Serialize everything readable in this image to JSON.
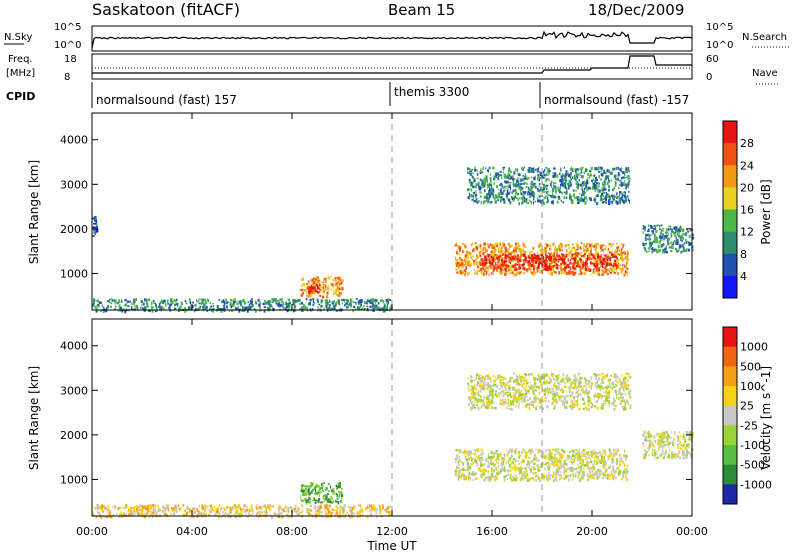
{
  "header": {
    "station": "Saskatoon (fitACF)",
    "beam": "Beam 15",
    "date": "18/Dec/2009"
  },
  "noise_panel": {
    "left_label": "N.Sky",
    "right_label": "N.Search",
    "left_ticks": [
      "10^5",
      "10^0"
    ],
    "right_ticks": [
      "10^5",
      "10^0"
    ]
  },
  "freq_panel": {
    "left_label_1": "Freq.",
    "left_label_2": "[MHz]",
    "right_label": "Nave",
    "left_ticks": [
      "18",
      "8"
    ],
    "right_ticks": [
      "60",
      "0"
    ]
  },
  "cpid": {
    "label": "CPID",
    "segments": [
      {
        "name": "normalsound (fast) 157",
        "start_hour": 0
      },
      {
        "name": "themis 3300",
        "start_hour": 12
      },
      {
        "name": "normalsound (fast) -157",
        "start_hour": 18
      }
    ]
  },
  "chart_data": [
    {
      "type": "heatmap",
      "name": "power",
      "ylabel": "Slant Range [km]",
      "yticks": [
        "1000",
        "2000",
        "3000",
        "4000"
      ],
      "ylim": [
        180,
        4600
      ],
      "xlim": [
        0,
        24
      ],
      "colorbar_label": "Power [dB]",
      "colorbar_ticks": [
        "4",
        "8",
        "12",
        "16",
        "20",
        "24",
        "28"
      ],
      "colorbar_colors": [
        "#1414ff",
        "#2050b0",
        "#2d8c6e",
        "#4cb848",
        "#e8d21e",
        "#f59a14",
        "#f05014",
        "#e81414"
      ],
      "regions": [
        {
          "x0": 0.0,
          "x1": 12.0,
          "y0": 180,
          "y1": 450,
          "level": 2
        },
        {
          "x0": 8.3,
          "x1": 10.0,
          "y0": 500,
          "y1": 950,
          "level": 5
        },
        {
          "x0": 8.6,
          "x1": 9.4,
          "y0": 580,
          "y1": 780,
          "level": 7
        },
        {
          "x0": 14.5,
          "x1": 21.4,
          "y0": 1000,
          "y1": 1700,
          "level": 5
        },
        {
          "x0": 15.5,
          "x1": 21.0,
          "y0": 1100,
          "y1": 1450,
          "level": 7
        },
        {
          "x0": 15.0,
          "x1": 21.5,
          "y0": 2600,
          "y1": 3400,
          "level": 2
        },
        {
          "x0": 22.0,
          "x1": 24.0,
          "y0": 1500,
          "y1": 2100,
          "level": 2
        },
        {
          "x0": 0.0,
          "x1": 0.2,
          "y0": 1850,
          "y1": 2300,
          "level": 1
        }
      ]
    },
    {
      "type": "heatmap",
      "name": "velocity",
      "ylabel": "Slant Range [km]",
      "yticks": [
        "1000",
        "2000",
        "3000",
        "4000"
      ],
      "ylim": [
        180,
        4600
      ],
      "xlim": [
        0,
        24
      ],
      "colorbar_label": "Velocity [m s^-1]",
      "colorbar_ticks": [
        "1000",
        "500",
        "100",
        "25",
        "-25",
        "-100",
        "-500",
        "-1000"
      ],
      "colorbar_colors": [
        "#1c2aa8",
        "#2d8c3a",
        "#58c040",
        "#9ad23a",
        "#c8c8c8",
        "#f5d214",
        "#f5a014",
        "#f06414",
        "#e81414"
      ],
      "regions": [
        {
          "x0": 0.0,
          "x1": 12.0,
          "y0": 180,
          "y1": 450,
          "level": 5
        },
        {
          "x0": 8.3,
          "x1": 10.0,
          "y0": 500,
          "y1": 950,
          "level": 2
        },
        {
          "x0": 14.5,
          "x1": 21.4,
          "y0": 1000,
          "y1": 1700,
          "level": 4
        },
        {
          "x0": 15.0,
          "x1": 21.5,
          "y0": 2600,
          "y1": 3400,
          "level": 4
        },
        {
          "x0": 22.0,
          "x1": 24.0,
          "y0": 1500,
          "y1": 2100,
          "level": 4
        }
      ]
    }
  ],
  "x_axis": {
    "label": "Time UT",
    "ticks": [
      "00:00",
      "04:00",
      "08:00",
      "12:00",
      "16:00",
      "20:00",
      "00:00"
    ]
  }
}
